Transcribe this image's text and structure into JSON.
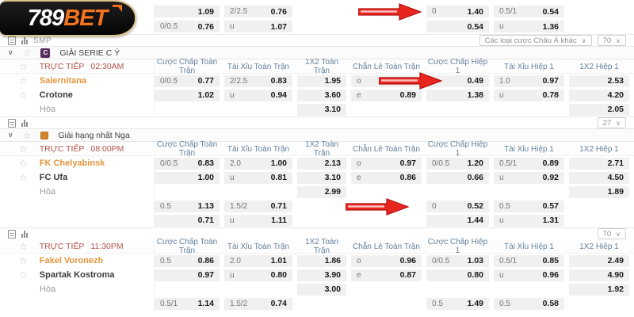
{
  "logo": {
    "text_white": "789",
    "text_orange": "BET"
  },
  "icons": {
    "star": "☆",
    "chevron": "∨",
    "schedule": "schedule-icon",
    "bar_chart": "bar-chart-icon",
    "red_arrow": "red-arrow"
  },
  "colors": {
    "brand_orange": "#f4731f",
    "team_highlight": "#e2953c",
    "live_red": "#b2544b",
    "header_blue": "#64829e",
    "arrow_red": "#e8251f",
    "cell_bg": "#f0f0f0"
  },
  "live_label": "TRỰC TIẾP",
  "draw_label": "Hòa",
  "column_headers": [
    "Cược Chấp Toàn Trận",
    "Tài Xỉu Toàn Trận",
    "1X2 Toàn Trận",
    "Chẵn Lẻ Toàn Trận",
    "Cược Chấp Hiệp 1",
    "Tài Xỉu Hiệp 1",
    "1X2 Hiệp 1"
  ],
  "toolbar1": {
    "smp_label": "SMP",
    "asian_dropdown": "Các loại cược Châu Á khác",
    "count": "70"
  },
  "toolbar2": {
    "count": "27"
  },
  "toolbar3": {
    "count": "70"
  },
  "top_rows": [
    {
      "cells": [
        {
          "h": "",
          "o": "1.09"
        },
        {
          "h": "2/2.5",
          "o": "0.76"
        },
        null,
        null,
        {
          "h": "0",
          "o": "1.40"
        },
        {
          "h": "0.5/1",
          "o": "0.54"
        },
        null
      ]
    },
    {
      "cells": [
        {
          "h": "0/0.5",
          "o": "0.76"
        },
        {
          "h": "u",
          "o": "1.07"
        },
        null,
        null,
        {
          "h": "",
          "o": "0.54"
        },
        {
          "h": "u",
          "o": "1.36"
        },
        null
      ]
    }
  ],
  "sections": [
    {
      "league": "GIẢI SERIE C Ý",
      "league_icon": "C",
      "time": "02:30AM",
      "rows": [
        {
          "name": "Salernitana",
          "highlight": true,
          "cells": [
            {
              "h": "0/0.5",
              "o": "0.77"
            },
            {
              "h": "2/2.5",
              "o": "0.83"
            },
            {
              "h": "",
              "o": "1.95"
            },
            {
              "h": "o",
              "o": "0.94"
            },
            {
              "h": "0",
              "o": "0.49"
            },
            {
              "h": "1.0",
              "o": "0.97"
            },
            {
              "h": "",
              "o": "2.53"
            }
          ]
        },
        {
          "name": "Crotone",
          "cells": [
            {
              "h": "",
              "o": "1.02"
            },
            {
              "h": "u",
              "o": "0.94"
            },
            {
              "h": "",
              "o": "3.60"
            },
            {
              "h": "e",
              "o": "0.89"
            },
            {
              "h": "",
              "o": "1.38"
            },
            {
              "h": "u",
              "o": "0.78"
            },
            {
              "h": "",
              "o": "4.20"
            }
          ]
        },
        {
          "name": "Hòa",
          "draw": true,
          "cells": [
            null,
            null,
            {
              "h": "",
              "o": "3.10"
            },
            null,
            null,
            null,
            {
              "h": "",
              "o": "2.05"
            }
          ]
        }
      ],
      "extra_rows": []
    },
    {
      "league": "Giải hạng nhất Nga",
      "league_icon": "",
      "time": "08:00PM",
      "rows": [
        {
          "name": "FK Chelyabinsk",
          "highlight": true,
          "cells": [
            {
              "h": "0/0.5",
              "o": "0.83"
            },
            {
              "h": "2.0",
              "o": "1.00"
            },
            {
              "h": "",
              "o": "2.13"
            },
            {
              "h": "o",
              "o": "0.97"
            },
            {
              "h": "0/0.5",
              "o": "1.20"
            },
            {
              "h": "0.5/1",
              "o": "0.89"
            },
            {
              "h": "",
              "o": "2.71"
            }
          ]
        },
        {
          "name": "FC Ufa",
          "cells": [
            {
              "h": "",
              "o": "1.00"
            },
            {
              "h": "u",
              "o": "0.81"
            },
            {
              "h": "",
              "o": "3.10"
            },
            {
              "h": "e",
              "o": "0.86"
            },
            {
              "h": "",
              "o": "0.66"
            },
            {
              "h": "u",
              "o": "0.92"
            },
            {
              "h": "",
              "o": "4.50"
            }
          ]
        },
        {
          "name": "Hòa",
          "draw": true,
          "cells": [
            null,
            null,
            {
              "h": "",
              "o": "2.99"
            },
            null,
            null,
            null,
            {
              "h": "",
              "o": "1.89"
            }
          ]
        }
      ],
      "extra_rows": [
        {
          "cells": [
            {
              "h": "0.5",
              "o": "1.13"
            },
            {
              "h": "1.5/2",
              "o": "0.71"
            },
            null,
            null,
            {
              "h": "0",
              "o": "0.52"
            },
            {
              "h": "0.5",
              "o": "0.57"
            },
            null
          ]
        },
        {
          "cells": [
            {
              "h": "",
              "o": "0.71"
            },
            {
              "h": "u",
              "o": "1.11"
            },
            null,
            null,
            {
              "h": "",
              "o": "1.44"
            },
            {
              "h": "u",
              "o": "1.31"
            },
            null
          ]
        }
      ]
    },
    {
      "league": null,
      "time": "11:30PM",
      "rows": [
        {
          "name": "Fakel Voronezh",
          "highlight": true,
          "cells": [
            {
              "h": "0.5",
              "o": "0.86"
            },
            {
              "h": "2.0",
              "o": "1.01"
            },
            {
              "h": "",
              "o": "1.86"
            },
            {
              "h": "o",
              "o": "0.96"
            },
            {
              "h": "0/0.5",
              "o": "1.03"
            },
            {
              "h": "0.5/1",
              "o": "0.85"
            },
            {
              "h": "",
              "o": "2.49"
            }
          ]
        },
        {
          "name": "Spartak Kostroma",
          "cells": [
            {
              "h": "",
              "o": "0.97"
            },
            {
              "h": "u",
              "o": "0.80"
            },
            {
              "h": "",
              "o": "3.90"
            },
            {
              "h": "e",
              "o": "0.87"
            },
            {
              "h": "",
              "o": "0.80"
            },
            {
              "h": "u",
              "o": "0.96"
            },
            {
              "h": "",
              "o": "4.90"
            }
          ]
        },
        {
          "name": "Hòa",
          "draw": true,
          "cells": [
            null,
            null,
            {
              "h": "",
              "o": "3.00"
            },
            null,
            null,
            null,
            {
              "h": "",
              "o": "1.92"
            }
          ]
        }
      ],
      "extra_rows": [
        {
          "cells": [
            {
              "h": "0.5/1",
              "o": "1.14"
            },
            {
              "h": "1.5/2",
              "o": "0.74"
            },
            null,
            null,
            {
              "h": "0.5",
              "o": "1.49"
            },
            {
              "h": "0.5",
              "o": "0.58"
            },
            null
          ]
        }
      ]
    }
  ]
}
